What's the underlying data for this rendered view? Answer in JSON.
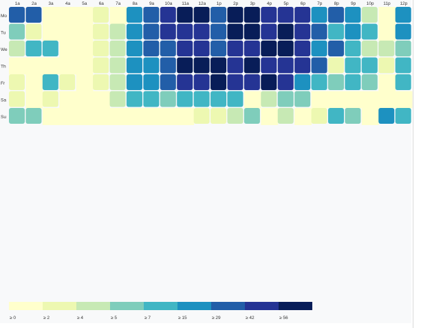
{
  "chart_data": {
    "type": "heatmap",
    "title": "",
    "xlabel": "",
    "ylabel": "",
    "x": [
      "1a",
      "2a",
      "3a",
      "4a",
      "5a",
      "6a",
      "7a",
      "8a",
      "9a",
      "10a",
      "11a",
      "12a",
      "1p",
      "2p",
      "3p",
      "4p",
      "5p",
      "6p",
      "7p",
      "8p",
      "9p",
      "10p",
      "11p",
      "12p"
    ],
    "y": [
      "Mo",
      "Tu",
      "We",
      "Th",
      "Fr",
      "Sa",
      "Su"
    ],
    "values": [
      [
        6,
        6,
        0,
        0,
        0,
        1,
        0,
        5,
        6,
        7,
        8,
        8,
        6,
        8,
        8,
        7,
        7,
        7,
        5,
        6,
        5,
        2,
        0,
        5
      ],
      [
        3,
        1,
        0,
        0,
        0,
        1,
        2,
        5,
        6,
        7,
        7,
        7,
        6,
        8,
        8,
        7,
        8,
        7,
        6,
        4,
        5,
        4,
        0,
        5
      ],
      [
        2,
        4,
        4,
        0,
        0,
        1,
        2,
        5,
        6,
        6,
        7,
        7,
        6,
        7,
        7,
        8,
        8,
        7,
        5,
        6,
        4,
        2,
        2,
        3
      ],
      [
        0,
        0,
        0,
        0,
        0,
        1,
        2,
        5,
        5,
        6,
        8,
        8,
        8,
        7,
        8,
        7,
        7,
        7,
        6,
        1,
        4,
        4,
        1,
        4
      ],
      [
        1,
        0,
        4,
        1,
        0,
        1,
        2,
        5,
        5,
        6,
        7,
        7,
        8,
        7,
        7,
        8,
        7,
        5,
        4,
        3,
        4,
        3,
        0,
        4
      ],
      [
        1,
        0,
        1,
        0,
        0,
        0,
        2,
        4,
        4,
        3,
        4,
        4,
        4,
        4,
        0,
        2,
        3,
        3,
        0,
        0,
        0,
        0,
        0,
        0
      ],
      [
        3,
        3,
        0,
        0,
        0,
        0,
        0,
        0,
        0,
        0,
        0,
        1,
        1,
        2,
        3,
        0,
        2,
        0,
        1,
        4,
        3,
        0,
        5,
        4
      ]
    ],
    "legend": {
      "labels": [
        "≥ 0",
        "≥ 2",
        "≥ 4",
        "≥ 5",
        "≥ 7",
        "≥ 15",
        "≥ 29",
        "≥ 42",
        "≥ 56"
      ]
    },
    "colors": [
      "#ffffcc",
      "#edf8b1",
      "#c7e9b4",
      "#7fcdbb",
      "#41b6c4",
      "#1d91c0",
      "#225ea8",
      "#253494",
      "#081d58"
    ],
    "grid": false,
    "legend_placement": "bottom-left"
  }
}
